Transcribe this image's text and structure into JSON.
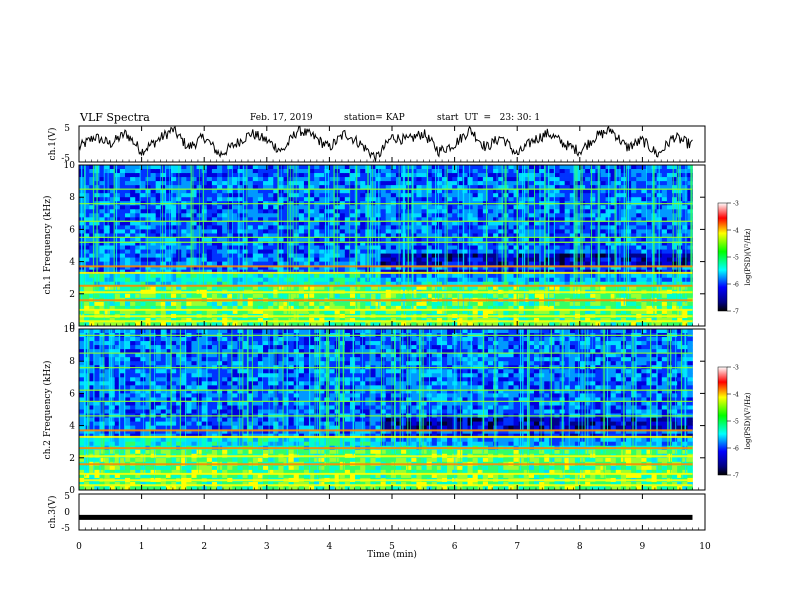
{
  "header": {
    "title": "VLF Spectra",
    "date": "Feb. 17, 2019",
    "station": "station= KAP",
    "start": "start  UT  =   23: 30: 1"
  },
  "chart_data": [
    {
      "type": "line",
      "panel": "ch1-waveform",
      "ylabel": "ch.1(V)",
      "ylim": [
        -5,
        5
      ],
      "yticks": [
        "5",
        "-5"
      ],
      "x": [
        0,
        0.25,
        0.5,
        0.75,
        1,
        1.25,
        1.5,
        1.75,
        2,
        2.25,
        2.5,
        2.75,
        3,
        3.25,
        3.5,
        3.75,
        4,
        4.25,
        4.5,
        4.75,
        5,
        5.25,
        5.5,
        5.75,
        6,
        6.25,
        6.5,
        6.75,
        7,
        7.25,
        7.5,
        7.75,
        8,
        8.25,
        8.5,
        8.75,
        9,
        9.25,
        9.5,
        9.75
      ],
      "y": [
        -1,
        2,
        0,
        3,
        -2,
        1,
        4,
        -1,
        2,
        -3,
        0,
        3,
        1,
        -2,
        4,
        2,
        -1,
        3,
        0,
        -4,
        2,
        1,
        3,
        -2,
        0,
        4,
        -1,
        2,
        -3,
        1,
        3,
        0,
        -2,
        2,
        4,
        -1,
        1,
        -3,
        2,
        0
      ]
    },
    {
      "type": "heatmap",
      "panel": "ch1-spectrogram",
      "ylabel": "ch.1 Frequency (kHz)",
      "ylim": [
        0,
        10
      ],
      "yticks": [
        "0",
        "2",
        "4",
        "6",
        "8",
        "10"
      ],
      "colorbar": {
        "label": "log(PSD)(V²/Hz)",
        "ticks": [
          "-3",
          "-4",
          "-5",
          "-6",
          "-7"
        ],
        "range": [
          -7,
          -3
        ]
      },
      "tone_bands_khz": [
        0.3,
        0.6,
        1.0,
        1.6,
        2.1,
        2.5,
        3.3,
        3.7,
        5.2,
        5.5,
        6.5,
        7.6,
        8.5
      ],
      "regime_change_min": 4.85
    },
    {
      "type": "heatmap",
      "panel": "ch2-spectrogram",
      "ylabel": "ch.2 Frequency (kHz)",
      "ylim": [
        0,
        10
      ],
      "yticks": [
        "0",
        "2",
        "4",
        "6",
        "8",
        "10"
      ],
      "colorbar": {
        "label": "log(PSD)(V²/Hz)",
        "ticks": [
          "-3",
          "-4",
          "-5",
          "-6",
          "-7"
        ],
        "range": [
          -7,
          -3
        ]
      },
      "tone_bands_khz": [
        0.3,
        0.6,
        1.0,
        1.6,
        2.1,
        2.6,
        3.3,
        3.7,
        4.6,
        5.5,
        6.2,
        7.6,
        8.5,
        9.6
      ],
      "regime_change_min": 4.85
    },
    {
      "type": "line",
      "panel": "ch3-waveform",
      "ylabel": "ch.3(V)",
      "ylim": [
        -5,
        5
      ],
      "yticks": [
        "5",
        "0",
        "-5"
      ],
      "x": [
        0,
        9.8
      ],
      "y": [
        -1.5,
        -1.5
      ]
    }
  ],
  "xaxis": {
    "label": "Time  (min)",
    "ticks": [
      "0",
      "1",
      "2",
      "3",
      "4",
      "5",
      "6",
      "7",
      "8",
      "9",
      "10"
    ],
    "xlim": [
      0,
      10
    ],
    "data_end_min": 9.8
  }
}
